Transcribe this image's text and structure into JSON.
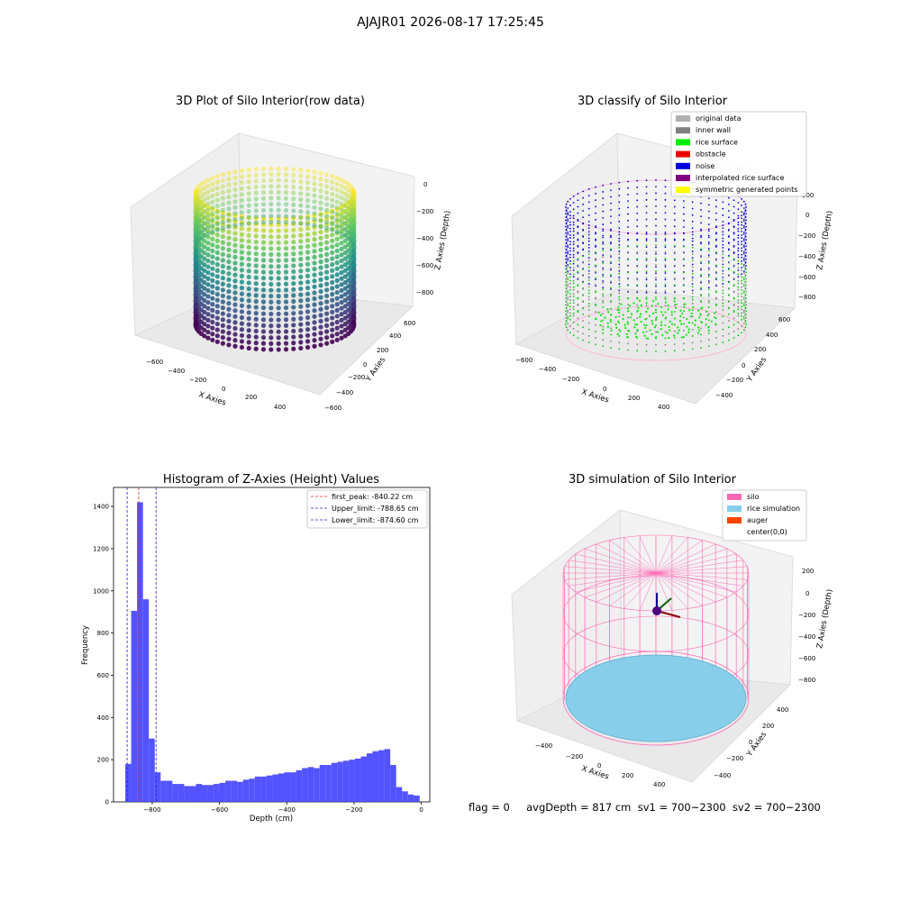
{
  "figure": {
    "suptitle": "AJAJR01 2026-08-17 17:25:45",
    "footer": "flag = 0     avgDepth = 817 cm  sv1 = 700~2300  sv2 = 700~2300"
  },
  "chart_data": [
    {
      "type": "scatter",
      "projection": "3d",
      "title": "3D Plot of Silo Interior(row data)",
      "xlabel": "X Axies",
      "ylabel": "Y Axies",
      "zlabel": "Z Axies (Depth)",
      "x_ticks": [
        -600,
        -400,
        -200,
        0,
        200,
        400
      ],
      "y_ticks": [
        -600,
        -400,
        -200,
        0,
        200,
        400,
        600
      ],
      "z_ticks": [
        -800,
        -600,
        -400,
        -200,
        0
      ],
      "xlim": [
        -650,
        500
      ],
      "ylim": [
        -650,
        650
      ],
      "zlim": [
        -900,
        50
      ],
      "colormap": "viridis",
      "description_shape": "cylindrical point cloud, radius ~500, depth 0 to -900"
    },
    {
      "type": "scatter",
      "projection": "3d",
      "title": "3D classify of Silo Interior",
      "xlabel": "X Axies",
      "ylabel": "Y Axies",
      "zlabel": "Z Axies (Depth)",
      "x_ticks": [
        -600,
        -400,
        -200,
        0,
        200,
        400
      ],
      "y_ticks": [
        -400,
        -200,
        0,
        200,
        400,
        600
      ],
      "z_ticks": [
        -800,
        -600,
        -400,
        -200,
        0,
        200
      ],
      "legend_position": "top-right",
      "legend": [
        {
          "label": "original data",
          "color": "#b0b0b0"
        },
        {
          "label": "inner wall",
          "color": "#808080"
        },
        {
          "label": "rice surface",
          "color": "#00ee00"
        },
        {
          "label": "obstacle",
          "color": "#ee0000"
        },
        {
          "label": "noise",
          "color": "#0000dd"
        },
        {
          "label": "interpolated rice surface",
          "color": "#800080"
        },
        {
          "label": "symmetric generated points",
          "color": "#ffff00"
        }
      ]
    },
    {
      "type": "bar",
      "title": "Histogram of Z-Axies (Height) Values",
      "xlabel": "Depth (cm)",
      "ylabel": "Frequency",
      "xlim": [
        -915,
        25
      ],
      "ylim": [
        0,
        1490
      ],
      "x_ticks": [
        -800,
        -600,
        -400,
        -200,
        0
      ],
      "y_ticks": [
        0,
        200,
        400,
        600,
        800,
        1000,
        1200,
        1400
      ],
      "bar_color": "#4040ff",
      "bin_width": 17.5,
      "bin_starts": [
        -880,
        -862.5,
        -845,
        -827.5,
        -810,
        -792.5,
        -775,
        -757.5,
        -740,
        -722.5,
        -705,
        -687.5,
        -670,
        -652.5,
        -635,
        -617.5,
        -600,
        -582.5,
        -565,
        -547.5,
        -530,
        -512.5,
        -495,
        -477.5,
        -460,
        -442.5,
        -425,
        -407.5,
        -390,
        -372.5,
        -355,
        -337.5,
        -320,
        -302.5,
        -285,
        -267.5,
        -250,
        -232.5,
        -215,
        -197.5,
        -180,
        -162.5,
        -145,
        -127.5,
        -110,
        -92.5,
        -75,
        -57.5,
        -40,
        -22.5
      ],
      "values": [
        180,
        905,
        1420,
        960,
        300,
        140,
        100,
        100,
        85,
        85,
        75,
        75,
        85,
        80,
        80,
        85,
        90,
        100,
        100,
        95,
        105,
        110,
        120,
        120,
        125,
        130,
        135,
        140,
        140,
        150,
        160,
        165,
        160,
        175,
        175,
        185,
        190,
        195,
        200,
        205,
        215,
        230,
        240,
        245,
        250,
        175,
        70,
        50,
        35,
        30
      ],
      "vlines": [
        {
          "label": "first_peak: -840.22 cm",
          "x": -840.22,
          "color": "#dd2222"
        },
        {
          "label": "Upper_limit: -788.65 cm",
          "x": -788.65,
          "color": "#2222cc"
        },
        {
          "label": "Lower_limit: -874.60 cm",
          "x": -874.6,
          "color": "#2222cc"
        }
      ],
      "legend_position": "top-right"
    },
    {
      "type": "scatter",
      "projection": "3d",
      "title": "3D simulation of Silo Interior",
      "xlabel": "X Axies",
      "ylabel": "Y Axies",
      "zlabel": "Z Axies (Depth)",
      "x_ticks": [
        -400,
        -200,
        0,
        200,
        400
      ],
      "y_ticks": [
        -400,
        -200,
        0,
        200,
        400
      ],
      "z_ticks": [
        -800,
        -600,
        -400,
        -200,
        0,
        200
      ],
      "legend_position": "top-right",
      "legend": [
        {
          "label": "silo",
          "color": "#ff69b4"
        },
        {
          "label": "rice simulation",
          "color": "#87ceeb"
        },
        {
          "label": "auger",
          "color": "#ff4500"
        },
        {
          "label": "center(0,0)",
          "color": "#ffffff"
        }
      ]
    }
  ]
}
